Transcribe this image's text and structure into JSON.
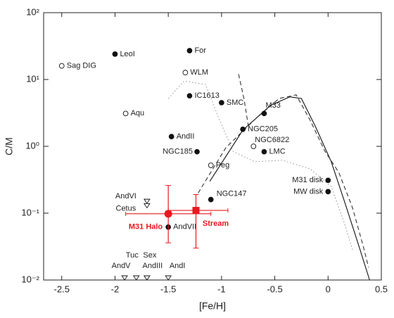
{
  "chart_data": {
    "type": "scatter",
    "x_label": "[Fe/H]",
    "y_label": "C/M",
    "xlim": [
      -2.67,
      0.5
    ],
    "ylim": [
      0.01,
      100
    ],
    "log_y": true,
    "xticks": [
      -2.5,
      -2,
      -1.5,
      -1,
      -0.5,
      0,
      0.5
    ],
    "yticks": [
      {
        "value": 0.01,
        "label": "10⁻²"
      },
      {
        "value": 0.1,
        "label": "10⁻¹"
      },
      {
        "value": 1,
        "label": "10⁰"
      },
      {
        "value": 10,
        "label": "10¹"
      },
      {
        "value": 100,
        "label": "10²"
      }
    ],
    "points": {
      "labels": [
        "Sag DIG",
        "LeoI",
        "For",
        "WLM",
        "IC1613",
        "SMC",
        "Aqu",
        "M33",
        "AndII",
        "NGC205",
        "NGC6822",
        "LMC",
        "NGC185",
        "Peg",
        "M31 disk",
        "MW disk",
        "NGC147",
        "AndVII"
      ],
      "x": [
        -2.5,
        -2.0,
        -1.3,
        -1.34,
        -1.3,
        -1.0,
        -1.9,
        -0.6,
        -1.47,
        -0.8,
        -0.7,
        -0.6,
        -1.23,
        -1.1,
        0.0,
        0.0,
        -1.1,
        -1.5
      ],
      "y": [
        16,
        24,
        27,
        12.7,
        5.7,
        4.5,
        3.1,
        3.1,
        1.4,
        1.8,
        1.0,
        0.83,
        0.83,
        0.52,
        0.31,
        0.21,
        0.16,
        0.062
      ],
      "filled": [
        false,
        true,
        true,
        false,
        true,
        true,
        false,
        true,
        true,
        true,
        false,
        true,
        true,
        false,
        true,
        true,
        true,
        true
      ]
    },
    "upper_limits": {
      "labels": [
        "AndVI",
        "Cetus",
        "AndV",
        "Tuc",
        "Sex",
        "AndIII",
        "AndI"
      ],
      "x": [
        -1.7,
        -1.7,
        -1.91,
        -1.8,
        -1.7,
        -1.7,
        -1.5
      ],
      "y": [
        0.14,
        0.12,
        0.01,
        0.01,
        0.01,
        0.01,
        0.01
      ]
    },
    "measurements": [
      {
        "name": "M31 Halo",
        "color": "#e8191f",
        "marker": "circle",
        "x": -1.5,
        "y": 0.098,
        "x_low": -1.9,
        "x_high": -1.1,
        "y_low": 0.036,
        "y_high": 0.26
      },
      {
        "name": "Stream",
        "color": "#e8191f",
        "marker": "square",
        "x": -1.24,
        "y": 0.11,
        "x_low": -1.5,
        "x_high": -0.94,
        "y_low": 0.03,
        "y_high": 0.19
      }
    ],
    "curves": [
      {
        "style": "solid",
        "color": "#111111",
        "x": [
          -1.11,
          -0.8,
          -0.54,
          -0.36,
          -0.25,
          -0.12,
          0.03,
          0.16,
          0.29,
          0.39
        ],
        "y": [
          0.3,
          1.75,
          4.1,
          5.5,
          5.2,
          2.0,
          0.59,
          0.14,
          0.032,
          0.01
        ]
      },
      {
        "style": "dashed",
        "color": "#333333",
        "x": [
          -1.22,
          -0.96,
          -0.69,
          -0.46,
          -0.3,
          -0.17,
          -0.03,
          0.1,
          0.23,
          0.33,
          0.38,
          null,
          -0.84,
          -0.79,
          -0.75
        ],
        "y": [
          0.2,
          0.95,
          2.5,
          5.2,
          5.9,
          2.5,
          0.85,
          0.41,
          0.12,
          0.032,
          0.0155,
          null,
          12,
          5.2,
          2.1
        ]
      },
      {
        "style": "dotted",
        "color": "#999999",
        "x": [
          -1.5,
          -1.35,
          -1.15,
          -1.02,
          -0.89,
          -0.69,
          -0.43,
          -0.17,
          0.03,
          0.16,
          0.23
        ],
        "y": [
          5.2,
          9.5,
          8.4,
          2.5,
          0.84,
          0.59,
          0.62,
          0.46,
          0.25,
          0.066,
          0.028
        ]
      }
    ]
  }
}
